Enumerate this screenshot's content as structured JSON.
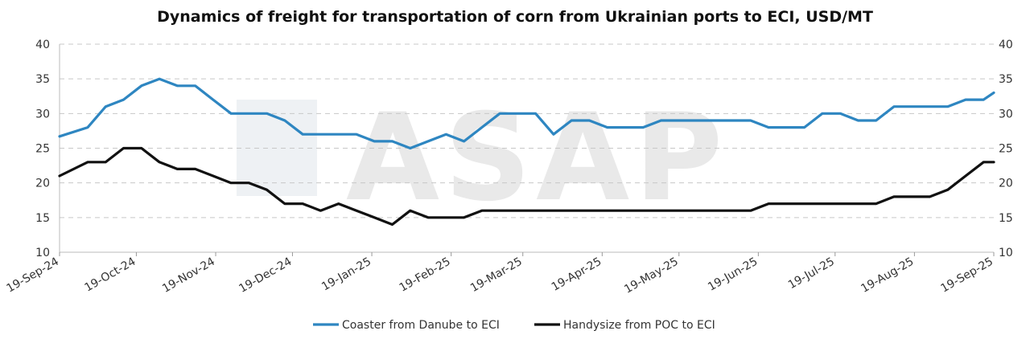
{
  "chart_data": {
    "type": "line",
    "title": "Dynamics of freight for transportation of corn from Ukrainian ports to ECI, USD/MT",
    "watermark": "ASAP",
    "ylim": [
      10,
      40
    ],
    "yticks": [
      10,
      15,
      20,
      25,
      30,
      35,
      40
    ],
    "y_axis_sides": [
      "left",
      "right"
    ],
    "grid": true,
    "legend_position": "bottom",
    "xticks": [
      "19-Sep-24",
      "19-Oct-24",
      "19-Nov-24",
      "19-Dec-24",
      "19-Jan-25",
      "19-Feb-25",
      "19-Mar-25",
      "19-Apr-25",
      "19-May-25",
      "19-Jun-25",
      "19-Jul-25",
      "19-Aug-25",
      "19-Sep-25"
    ],
    "x": [
      "2024-09-19",
      "2024-09-30",
      "2024-10-07",
      "2024-10-14",
      "2024-10-21",
      "2024-10-28",
      "2024-11-04",
      "2024-11-11",
      "2024-11-18",
      "2024-11-25",
      "2024-12-02",
      "2024-12-09",
      "2024-12-16",
      "2024-12-23",
      "2024-12-30",
      "2025-01-06",
      "2025-01-13",
      "2025-01-20",
      "2025-01-27",
      "2025-02-03",
      "2025-02-10",
      "2025-02-17",
      "2025-02-24",
      "2025-03-03",
      "2025-03-10",
      "2025-03-17",
      "2025-03-24",
      "2025-03-31",
      "2025-04-07",
      "2025-04-14",
      "2025-04-21",
      "2025-04-28",
      "2025-05-05",
      "2025-05-12",
      "2025-05-19",
      "2025-05-26",
      "2025-06-02",
      "2025-06-09",
      "2025-06-16",
      "2025-06-23",
      "2025-06-30",
      "2025-07-07",
      "2025-07-14",
      "2025-07-21",
      "2025-07-28",
      "2025-08-04",
      "2025-08-11",
      "2025-08-18",
      "2025-08-25",
      "2025-09-01",
      "2025-09-08",
      "2025-09-15",
      "2025-09-19"
    ],
    "series": [
      {
        "name": "Coaster from Danube to ECI",
        "color": "#2e86c1",
        "values": [
          26.7,
          28,
          31,
          32,
          34,
          35,
          34,
          34,
          32,
          30,
          30,
          30,
          29,
          27,
          27,
          27,
          27,
          26,
          26,
          25,
          26,
          27,
          26,
          28,
          30,
          30,
          30,
          27,
          29,
          29,
          28,
          28,
          28,
          29,
          29,
          29,
          29,
          29,
          29,
          28,
          28,
          28,
          30,
          30,
          29,
          29,
          31,
          31,
          31,
          31,
          32,
          32,
          33
        ]
      },
      {
        "name": "Handysize from POC to ECI",
        "color": "#111111",
        "values": [
          21,
          23,
          23,
          25,
          25,
          23,
          22,
          22,
          21,
          20,
          20,
          19,
          17,
          17,
          16,
          17,
          16,
          15,
          14,
          16,
          15,
          15,
          15,
          16,
          16,
          16,
          16,
          16,
          16,
          16,
          16,
          16,
          16,
          16,
          16,
          16,
          16,
          16,
          16,
          17,
          17,
          17,
          17,
          17,
          17,
          17,
          18,
          18,
          18,
          19,
          21,
          23,
          23
        ]
      }
    ]
  }
}
